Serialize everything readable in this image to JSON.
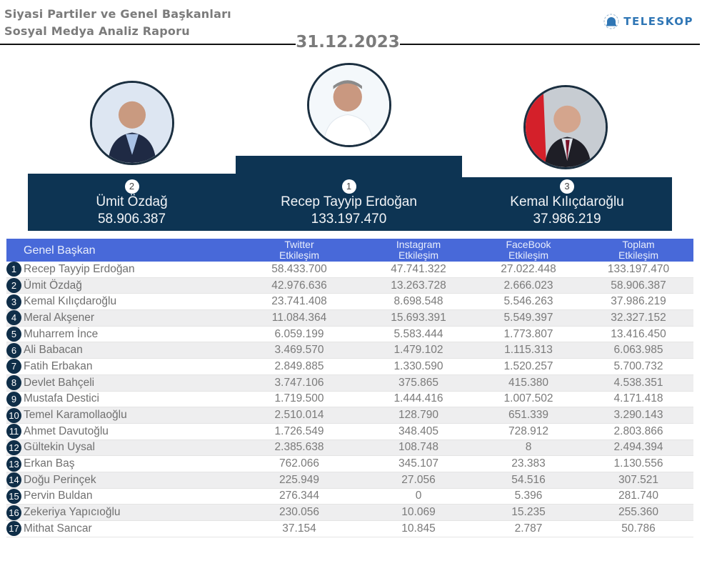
{
  "header": {
    "title_line1": "Siyasi Partiler ve Genel Başkanları",
    "title_line2": "Sosyal Medya Analiz Raporu",
    "logo_text": "TELESKOP",
    "date": "31.12.2023"
  },
  "colors": {
    "navy": "#0d3453",
    "header_blue": "#4869d9",
    "logo_blue": "#2f76b5"
  },
  "podium": {
    "first": {
      "rank": "1",
      "name": "Recep Tayyip Erdoğan",
      "value": "133.197.470",
      "photo": "portrait-photo"
    },
    "second": {
      "rank": "2",
      "name": "Ümit Özdağ",
      "value": "58.906.387",
      "photo": "portrait-photo"
    },
    "third": {
      "rank": "3",
      "name": "Kemal Kılıçdaroğlu",
      "value": "37.986.219",
      "photo": "portrait-photo"
    }
  },
  "table": {
    "headers": {
      "name": "Genel Başkan",
      "twitter": [
        "Twitter",
        "Etkileşim"
      ],
      "instagram": [
        "Instagram",
        "Etkileşim"
      ],
      "facebook": [
        "FaceBook",
        "Etkileşim"
      ],
      "total": [
        "Toplam",
        "Etkileşim"
      ]
    },
    "rows": [
      {
        "rank": "1",
        "name": "Recep Tayyip Erdoğan",
        "twitter": "58.433.700",
        "instagram": "47.741.322",
        "facebook": "27.022.448",
        "total": "133.197.470"
      },
      {
        "rank": "2",
        "name": "Ümit Özdağ",
        "twitter": "42.976.636",
        "instagram": "13.263.728",
        "facebook": "2.666.023",
        "total": "58.906.387"
      },
      {
        "rank": "3",
        "name": "Kemal Kılıçdaroğlu",
        "twitter": "23.741.408",
        "instagram": "8.698.548",
        "facebook": "5.546.263",
        "total": "37.986.219"
      },
      {
        "rank": "4",
        "name": "Meral Akşener",
        "twitter": "11.084.364",
        "instagram": "15.693.391",
        "facebook": "5.549.397",
        "total": "32.327.152"
      },
      {
        "rank": "5",
        "name": "Muharrem İnce",
        "twitter": "6.059.199",
        "instagram": "5.583.444",
        "facebook": "1.773.807",
        "total": "13.416.450"
      },
      {
        "rank": "6",
        "name": "Ali Babacan",
        "twitter": "3.469.570",
        "instagram": "1.479.102",
        "facebook": "1.115.313",
        "total": "6.063.985"
      },
      {
        "rank": "7",
        "name": "Fatih Erbakan",
        "twitter": "2.849.885",
        "instagram": "1.330.590",
        "facebook": "1.520.257",
        "total": "5.700.732"
      },
      {
        "rank": "8",
        "name": "Devlet Bahçeli",
        "twitter": "3.747.106",
        "instagram": "375.865",
        "facebook": "415.380",
        "total": "4.538.351"
      },
      {
        "rank": "9",
        "name": "Mustafa Destici",
        "twitter": "1.719.500",
        "instagram": "1.444.416",
        "facebook": "1.007.502",
        "total": "4.171.418"
      },
      {
        "rank": "10",
        "name": "Temel Karamollaoğlu",
        "twitter": "2.510.014",
        "instagram": "128.790",
        "facebook": "651.339",
        "total": "3.290.143"
      },
      {
        "rank": "11",
        "name": "Ahmet Davutoğlu",
        "twitter": "1.726.549",
        "instagram": "348.405",
        "facebook": "728.912",
        "total": "2.803.866"
      },
      {
        "rank": "12",
        "name": "Gültekin Uysal",
        "twitter": "2.385.638",
        "instagram": "108.748",
        "facebook": "8",
        "total": "2.494.394"
      },
      {
        "rank": "13",
        "name": "Erkan Baş",
        "twitter": "762.066",
        "instagram": "345.107",
        "facebook": "23.383",
        "total": "1.130.556"
      },
      {
        "rank": "14",
        "name": "Doğu Perinçek",
        "twitter": "225.949",
        "instagram": "27.056",
        "facebook": "54.516",
        "total": "307.521"
      },
      {
        "rank": "15",
        "name": "Pervin Buldan",
        "twitter": "276.344",
        "instagram": "0",
        "facebook": "5.396",
        "total": "281.740"
      },
      {
        "rank": "16",
        "name": "Zekeriya Yapıcıoğlu",
        "twitter": "230.056",
        "instagram": "10.069",
        "facebook": "15.235",
        "total": "255.360"
      },
      {
        "rank": "17",
        "name": "Mithat Sancar",
        "twitter": "37.154",
        "instagram": "10.845",
        "facebook": "2.787",
        "total": "50.786"
      }
    ]
  }
}
